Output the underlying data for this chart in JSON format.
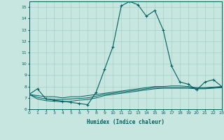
{
  "title": "",
  "xlabel": "Humidex (Indice chaleur)",
  "ylabel": "",
  "bg_color": "#c8e6e0",
  "line_color": "#006060",
  "grid_color": "#a8d0c8",
  "xlim": [
    0,
    23
  ],
  "ylim": [
    6,
    15.5
  ],
  "yticks": [
    6,
    7,
    8,
    9,
    10,
    11,
    12,
    13,
    14,
    15
  ],
  "xticks": [
    0,
    1,
    2,
    3,
    4,
    5,
    6,
    7,
    8,
    9,
    10,
    11,
    12,
    13,
    14,
    15,
    16,
    17,
    18,
    19,
    20,
    21,
    22,
    23
  ],
  "series": [
    [
      0,
      7.3
    ],
    [
      1,
      7.8
    ],
    [
      2,
      6.9
    ],
    [
      3,
      6.8
    ],
    [
      4,
      6.7
    ],
    [
      5,
      6.6
    ],
    [
      6,
      6.5
    ],
    [
      7,
      6.4
    ],
    [
      8,
      7.5
    ],
    [
      9,
      9.5
    ],
    [
      10,
      11.5
    ],
    [
      11,
      15.1
    ],
    [
      12,
      15.5
    ],
    [
      13,
      15.2
    ],
    [
      14,
      14.2
    ],
    [
      15,
      14.7
    ],
    [
      16,
      13.0
    ],
    [
      17,
      9.8
    ],
    [
      18,
      8.4
    ],
    [
      19,
      8.2
    ],
    [
      20,
      7.7
    ],
    [
      21,
      8.4
    ],
    [
      22,
      8.6
    ],
    [
      23,
      8.0
    ]
  ],
  "flat_series": [
    [
      0,
      7.3
    ],
    [
      1,
      7.2
    ],
    [
      2,
      7.1
    ],
    [
      3,
      7.1
    ],
    [
      4,
      7.0
    ],
    [
      5,
      7.1
    ],
    [
      6,
      7.1
    ],
    [
      7,
      7.2
    ],
    [
      8,
      7.3
    ],
    [
      9,
      7.4
    ],
    [
      10,
      7.5
    ],
    [
      11,
      7.6
    ],
    [
      12,
      7.7
    ],
    [
      13,
      7.8
    ],
    [
      14,
      7.9
    ],
    [
      15,
      8.0
    ],
    [
      16,
      8.0
    ],
    [
      17,
      8.05
    ],
    [
      18,
      8.05
    ],
    [
      19,
      8.0
    ],
    [
      20,
      7.9
    ],
    [
      21,
      7.9
    ],
    [
      22,
      7.95
    ],
    [
      23,
      8.0
    ]
  ],
  "flat_series2": [
    [
      0,
      7.3
    ],
    [
      1,
      7.05
    ],
    [
      2,
      6.9
    ],
    [
      3,
      6.85
    ],
    [
      4,
      6.85
    ],
    [
      5,
      6.9
    ],
    [
      6,
      6.95
    ],
    [
      7,
      7.0
    ],
    [
      8,
      7.15
    ],
    [
      9,
      7.3
    ],
    [
      10,
      7.4
    ],
    [
      11,
      7.5
    ],
    [
      12,
      7.6
    ],
    [
      13,
      7.7
    ],
    [
      14,
      7.8
    ],
    [
      15,
      7.9
    ],
    [
      16,
      7.9
    ],
    [
      17,
      7.9
    ],
    [
      18,
      7.9
    ],
    [
      19,
      7.9
    ],
    [
      20,
      7.85
    ],
    [
      21,
      7.85
    ],
    [
      22,
      7.9
    ],
    [
      23,
      7.95
    ]
  ],
  "flat_series3": [
    [
      0,
      7.3
    ],
    [
      1,
      6.9
    ],
    [
      2,
      6.75
    ],
    [
      3,
      6.7
    ],
    [
      4,
      6.65
    ],
    [
      5,
      6.7
    ],
    [
      6,
      6.8
    ],
    [
      7,
      6.85
    ],
    [
      8,
      7.0
    ],
    [
      9,
      7.2
    ],
    [
      10,
      7.3
    ],
    [
      11,
      7.4
    ],
    [
      12,
      7.5
    ],
    [
      13,
      7.6
    ],
    [
      14,
      7.7
    ],
    [
      15,
      7.8
    ],
    [
      16,
      7.85
    ],
    [
      17,
      7.85
    ],
    [
      18,
      7.85
    ],
    [
      19,
      7.85
    ],
    [
      20,
      7.8
    ],
    [
      21,
      7.8
    ],
    [
      22,
      7.85
    ],
    [
      23,
      7.9
    ]
  ]
}
